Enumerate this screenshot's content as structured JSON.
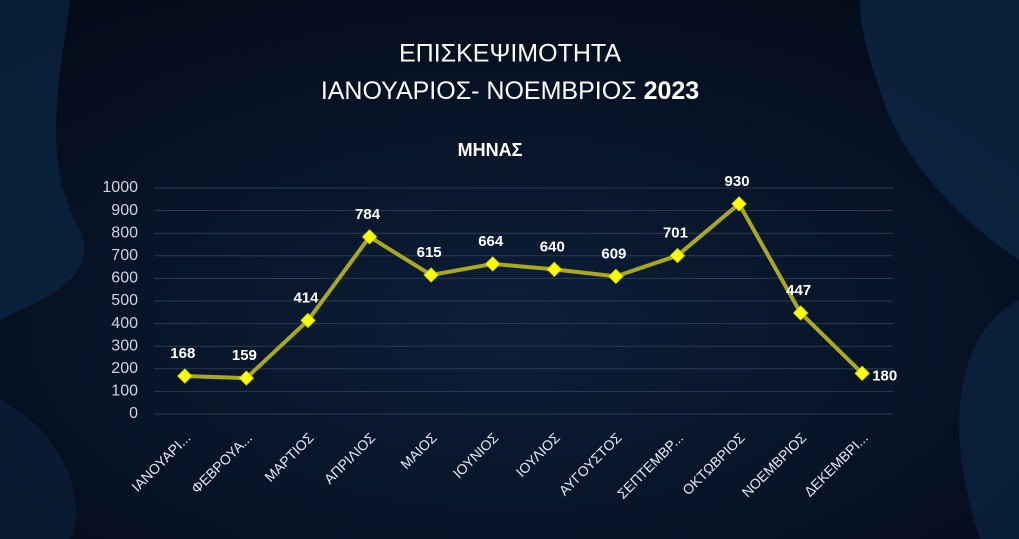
{
  "chart_data": {
    "type": "line",
    "title": "ΕΠΙΣΚΕΨΙΜΟΤΗΤΑ",
    "subtitle": [
      "ΙΑΝΟΥΑΡΙΟΣ- ΝΟΕΜΒΡΙΟΣ ",
      "2023"
    ],
    "categories": [
      "ΙΑΝΟΥΑΡΙ...",
      "ΦΕΒΡΟΥΑ...",
      "ΜΑΡΤΙΟΣ",
      "ΑΠΡΙΛΙΟΣ",
      "ΜΑΙΟΣ",
      "ΙΟΥΝΙΟΣ",
      "ΙΟΥΛΙΟΣ",
      "ΑΥΓΟΥΣΤΟΣ",
      "ΣΕΠΤΕΜΒΡ...",
      "ΟΚΤΩΒΡΙΟΣ",
      "ΝΟΕΜΒΡΙΟΣ",
      "ΔΕΚΕΜΒΡΙ..."
    ],
    "series": [
      {
        "name": "ΜΗΝΑΣ",
        "color": "#a9a91e",
        "marker_color": "#ffff00",
        "values": [
          168,
          159,
          414,
          784,
          615,
          664,
          640,
          609,
          701,
          930,
          447,
          180
        ]
      }
    ],
    "ylim": [
      0,
      1000
    ],
    "yticks": [
      0,
      100,
      200,
      300,
      400,
      500,
      600,
      700,
      800,
      900,
      1000
    ],
    "grid": true
  }
}
